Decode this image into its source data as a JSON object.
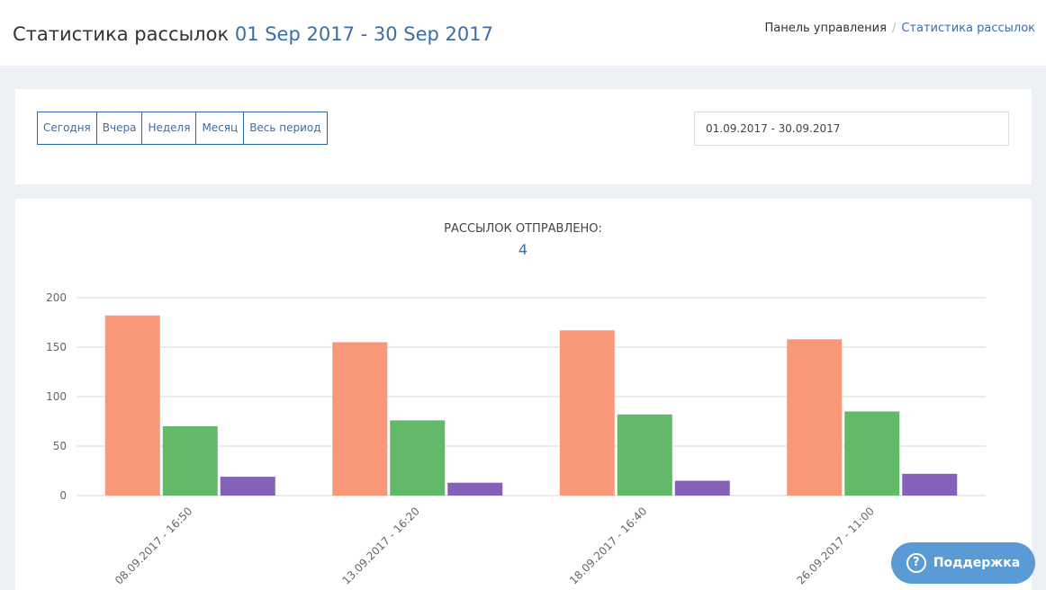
{
  "header": {
    "title": "Статистика рассылок",
    "period": "01 Sep 2017 - 30 Sep 2017",
    "breadcrumbs": [
      "Панель управления",
      "Статистика рассылок"
    ]
  },
  "filters": {
    "buttons": [
      "Сегодня",
      "Вчера",
      "Неделя",
      "Месяц",
      "Весь период"
    ],
    "date_range": "01.09.2017 - 30.09.2017"
  },
  "stats": {
    "label": "РАССЫЛОК ОТПРАВЛЕНО:",
    "sent_count": 4
  },
  "support": {
    "label": "Поддержка"
  },
  "chart_data": {
    "type": "bar",
    "categories": [
      "08.09.2017 - 16:50",
      "13.09.2017 - 16:20",
      "18.09.2017 - 16:40",
      "26.09.2017 - 11:00"
    ],
    "series": [
      {
        "color": "#f99779",
        "values": [
          182,
          155,
          167,
          158
        ]
      },
      {
        "color": "#63b96a",
        "values": [
          70,
          76,
          82,
          85
        ]
      },
      {
        "color": "#8462b9",
        "values": [
          19,
          13,
          15,
          22
        ]
      }
    ],
    "ylim": [
      0,
      200
    ],
    "yticks": [
      0,
      50,
      100,
      150,
      200
    ],
    "grid": true
  }
}
